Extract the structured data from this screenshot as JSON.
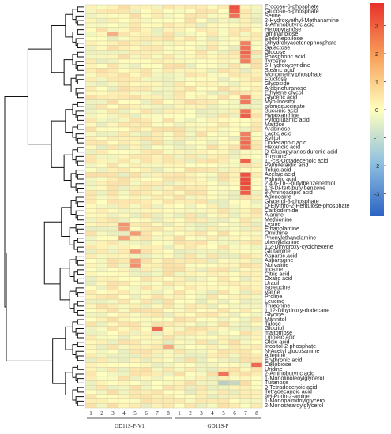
{
  "chart_data": {
    "type": "heatmap",
    "columns": [
      "1",
      "2",
      "3",
      "4",
      "5",
      "6",
      "7",
      "8",
      "1",
      "2",
      "3",
      "4",
      "5",
      "6",
      "7",
      "8"
    ],
    "groups": [
      {
        "label": "GD11S-P-V1",
        "start": 0,
        "end": 7
      },
      {
        "label": "GD11S-P",
        "start": 8,
        "end": 15
      }
    ],
    "rows": [
      "Erocose-6-phosphate",
      "Glucose-6-phosphate",
      "Serine",
      "2-Hydroxyethyl-Methanamine",
      "4-Aminobutyric acid",
      "Hexopyranose",
      "laminaribiose",
      "Sedoheptulose",
      "Dihydroxyacetonephosphate",
      "Galactose",
      "Glucose",
      "Phosphoric acid",
      "Tyrosine",
      "5-Hydroxypyridine",
      "Stearic acid",
      "Monomethylphosphate",
      "Fructose",
      "Glycoside",
      "Arabinofuranose",
      "Ethylene glycol",
      "Glyceric acid",
      "Myo-Inositol",
      "promosuccinate",
      "Succinic acid",
      "Hypoxanthine",
      "Pyroglutamic acid",
      "Maltose",
      "Arabinose",
      "Lactic acid",
      "Xylitol",
      "Dodecanoic acid",
      "Hexanoic acid",
      "D-Glucopyranosiduronic acid",
      "Thymine",
      "11-cis-Octadecenoic acid",
      "Palmitelaidic acid",
      "Toluic acid",
      "Azelaic acid",
      "Palmitic acid",
      "2,4,6-Tri-t-butylbenzenethiol",
      "1,3-Di-tert-butylbenzene",
      "8-Aminoadipic acid",
      "Adenosine",
      "Glycerol-3-phosphate",
      "D-Erythro-2-Pentulose-phosphate",
      "Carbodiimide",
      "Alanine",
      "Methionine",
      "Lysine",
      "Ethanolamine",
      "Ornithine",
      "Phenylethanolamine",
      "phenylalanine",
      "1,2-Dihydroxy-cyclohexene",
      "Glutamine",
      "Aspartic acid",
      "Asparagine",
      "Norvaline",
      "Inosine",
      "Citric acid",
      "Oxalic acid",
      "Uracil",
      "Isoleucine",
      "Valine",
      "Proline",
      "Leucine",
      "Threonine",
      "1,12-Dihydroxy-dodecane",
      "Glycine",
      "Mannitol",
      "Talose",
      "Glucitol",
      "maltotriose",
      "Linoleic acid",
      "Oleic acid",
      "Inositol-2-phosphate",
      "N-Acetyl glucosamine",
      "Adenine",
      "Erythronic acid",
      "Cellobiose",
      "Uridine",
      "2-Aminobutyric acid",
      "1-Monolinoleoylglycerol",
      "Turanose",
      "9-Tetradecenoic acid",
      "Tetradecanoic acid",
      "9H-Purin-2-amine",
      "1-Monopalmitoylglycerol",
      "2-Monostearoylglycerol"
    ],
    "color_range": [
      -3.8,
      3.8
    ],
    "colorbar_ticks": [
      3,
      2,
      1,
      0,
      -1,
      -2,
      -3
    ],
    "colors": {
      "low": "#2b63c4",
      "mid": "#ffffbf",
      "high": "#e8322b"
    },
    "highlights": [
      {
        "row": "Erocose-6-phosphate",
        "col": 13,
        "value": 3.2
      },
      {
        "row": "Glucose-6-phosphate",
        "col": 13,
        "value": 3.0
      },
      {
        "row": "Serine",
        "col": 13,
        "value": 2.6
      },
      {
        "row": "Dihydroxyacetonephosphate",
        "col": 14,
        "value": 2.4
      },
      {
        "row": "Galactose",
        "col": 14,
        "value": 2.6
      },
      {
        "row": "Glucose",
        "col": 14,
        "value": 2.9
      },
      {
        "row": "Phosphoric acid",
        "col": 14,
        "value": 2.5
      },
      {
        "row": "Tyrosine",
        "col": 14,
        "value": 2.4
      },
      {
        "row": "Glyceric acid",
        "col": 14,
        "value": 2.3
      },
      {
        "row": "Myo-Inositol",
        "col": 14,
        "value": 2.5
      },
      {
        "row": "Succinic acid",
        "col": 14,
        "value": 2.6
      },
      {
        "row": "Hypoxanthine",
        "col": 14,
        "value": 3.0
      },
      {
        "row": "Lactic acid",
        "col": 14,
        "value": 2.4
      },
      {
        "row": "Xylitol",
        "col": 14,
        "value": 2.5
      },
      {
        "row": "Dodecanoic acid",
        "col": 14,
        "value": 2.8
      },
      {
        "row": "Hexanoic acid",
        "col": 14,
        "value": 2.6
      },
      {
        "row": "11-cis-Octadecenoic acid",
        "col": 14,
        "value": 2.9
      },
      {
        "row": "Azelaic acid",
        "col": 14,
        "value": 3.2
      },
      {
        "row": "Palmitic acid",
        "col": 14,
        "value": 3.3
      },
      {
        "row": "2,4,6-Tri-t-butylbenzenethiol",
        "col": 14,
        "value": 3.4
      },
      {
        "row": "1,3-Di-tert-butylbenzene",
        "col": 14,
        "value": 3.2
      },
      {
        "row": "8-Aminoadipic acid",
        "col": 14,
        "value": 3.0
      },
      {
        "row": "Lysine",
        "col": 3,
        "value": 2.0
      },
      {
        "row": "Ethanolamine",
        "col": 3,
        "value": 1.8
      },
      {
        "row": "Ornithine",
        "col": 4,
        "value": 1.9
      },
      {
        "row": "Phenylethanolamine",
        "col": 3,
        "value": 1.7
      },
      {
        "row": "Glutamine",
        "col": 4,
        "value": 1.9
      },
      {
        "row": "Asparagine",
        "col": 4,
        "value": 1.8
      },
      {
        "row": "Norvaline",
        "col": 4,
        "value": 2.1
      },
      {
        "row": "Glucitol",
        "col": 6,
        "value": 2.8
      },
      {
        "row": "Inositol-2-phosphate",
        "col": 7,
        "value": 1.6
      },
      {
        "row": "Cellobiose",
        "col": 15,
        "value": 2.8
      },
      {
        "row": "2-Aminobutyric acid",
        "col": 12,
        "value": 2.6
      },
      {
        "row": "laminaribiose",
        "col": 2,
        "value": 1.5
      },
      {
        "row": "Turanose",
        "col": 12,
        "value": -1.2
      },
      {
        "row": "Turanose",
        "col": 13,
        "value": -1.0
      }
    ]
  }
}
